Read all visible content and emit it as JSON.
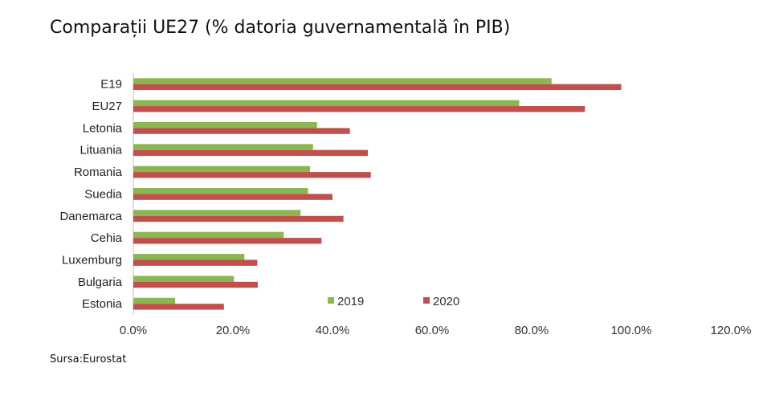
{
  "header": {
    "title": "Comparații UE27 (% datoria guvernamentală în PIB)"
  },
  "footer": {
    "source": "Sursa:Eurostat"
  },
  "chart_data": {
    "type": "bar",
    "orientation": "horizontal",
    "categories": [
      "E19",
      "EU27",
      "Letonia",
      "Lituania",
      "Romania",
      "Suedia",
      "Danemarca",
      "Cehia",
      "Luxemburg",
      "Bulgaria",
      "Estonia"
    ],
    "series": [
      {
        "name": "2019",
        "color": "#8db652",
        "values": [
          84.0,
          77.5,
          36.9,
          36.1,
          35.5,
          35.1,
          33.6,
          30.2,
          22.3,
          20.2,
          8.4
        ]
      },
      {
        "name": "2020",
        "color": "#c0504d",
        "values": [
          98.0,
          90.7,
          43.5,
          47.1,
          47.7,
          40.0,
          42.2,
          37.8,
          24.9,
          25.0,
          18.2
        ]
      }
    ],
    "xlim": [
      0,
      120
    ],
    "xticks": [
      "0.0%",
      "20.0%",
      "40.0%",
      "60.0%",
      "80.0%",
      "100.0%",
      "120.0%"
    ],
    "grid": false,
    "legend_position": "bottom-right inside plot"
  }
}
